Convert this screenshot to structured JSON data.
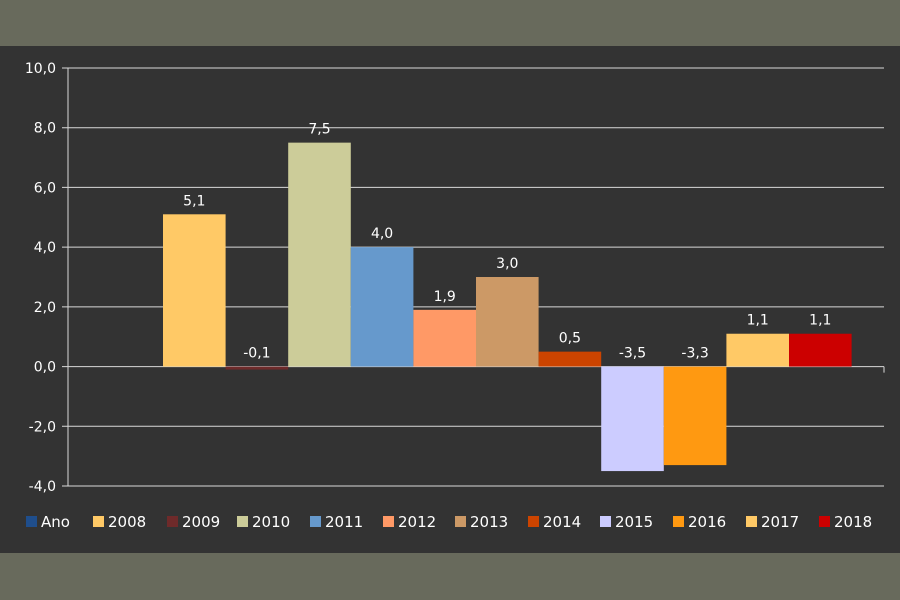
{
  "chart_data": {
    "type": "bar",
    "ylim": [
      -4,
      10
    ],
    "y_ticks": [
      "10,0",
      "8,0",
      "6,0",
      "4,0",
      "2,0",
      "0,0",
      "-2,0",
      "-4,0"
    ],
    "y_tick_values": [
      10,
      8,
      6,
      4,
      2,
      0,
      -2,
      -4
    ],
    "grid": true,
    "legend_position": "bottom",
    "series": [
      {
        "name": "Ano",
        "value": null,
        "label": "",
        "color": "#1f4e8c"
      },
      {
        "name": "2008",
        "value": 5.1,
        "label": "5,1",
        "color": "#ffc966"
      },
      {
        "name": "2009",
        "value": -0.1,
        "label": "-0,1",
        "color": "#6e2a2a"
      },
      {
        "name": "2010",
        "value": 7.5,
        "label": "7,5",
        "color": "#cccc99"
      },
      {
        "name": "2011",
        "value": 4.0,
        "label": "4,0",
        "color": "#6699cc"
      },
      {
        "name": "2012",
        "value": 1.9,
        "label": "1,9",
        "color": "#ff9966"
      },
      {
        "name": "2013",
        "value": 3.0,
        "label": "3,0",
        "color": "#cc9966"
      },
      {
        "name": "2014",
        "value": 0.5,
        "label": "0,5",
        "color": "#cc4400"
      },
      {
        "name": "2015",
        "value": -3.5,
        "label": "-3,5",
        "color": "#ccccff"
      },
      {
        "name": "2016",
        "value": -3.3,
        "label": "-3,3",
        "color": "#ff9911"
      },
      {
        "name": "2017",
        "value": 1.1,
        "label": "1,1",
        "color": "#ffc966"
      },
      {
        "name": "2018",
        "value": 1.1,
        "label": "1,1",
        "color": "#cc0000"
      }
    ]
  }
}
